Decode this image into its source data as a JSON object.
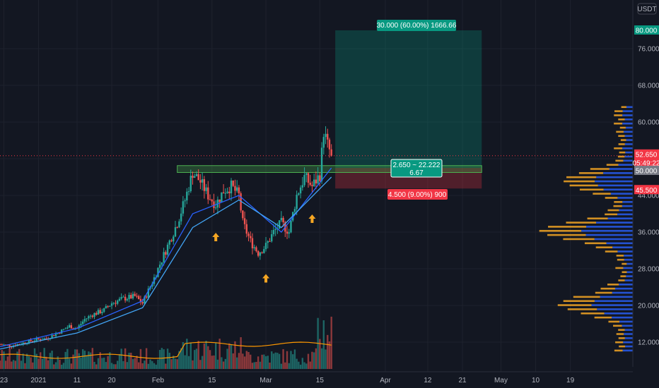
{
  "header": {
    "currency": "USDT"
  },
  "price_axis": {
    "ticks": [
      "12.000",
      "20.000",
      "28.000",
      "36.000",
      "44.000",
      "52.000",
      "60.000",
      "68.000",
      "76.000"
    ],
    "tags": [
      {
        "label": "80.000",
        "color": "#089981"
      },
      {
        "label": "52.650",
        "color": "#f23645"
      },
      {
        "label": "05:49:22",
        "color": "#f23645"
      },
      {
        "label": "50.000",
        "color": "#787b86"
      },
      {
        "label": "45.500",
        "color": "#f23645"
      }
    ]
  },
  "time_axis": {
    "ticks": [
      "23",
      "2021",
      "11",
      "20",
      "Feb",
      "15",
      "Mar",
      "15",
      "Apr",
      "12",
      "21",
      "May",
      "10",
      "19"
    ]
  },
  "position_tool": {
    "target_label": "30.000 (60.00%) 1666.66",
    "ratio_line1": "2.650 ~ 22.222",
    "ratio_line2": "6.67",
    "stop_label": "4.500 (9.00%) 900",
    "profit_color": "#089981",
    "loss_color": "#f23645"
  },
  "colors": {
    "up": "#26a69a",
    "down": "#ef5350",
    "ma_fast": "#2962ff",
    "ma_slow": "#42a5f5",
    "volume_ma": "#ff9800",
    "vp_up": "#f5a623",
    "vp_down": "#2962ff",
    "zone": "#4caf50",
    "arrow": "#f5a623"
  },
  "chart_data": {
    "type": "candlestick",
    "pair_quote": "USDT",
    "ylim": [
      6,
      86
    ],
    "x_range": [
      "Dec 22",
      "May 30"
    ],
    "price_series": [
      [
        "Dec 22",
        11.5
      ],
      [
        "Dec 25",
        11.2
      ],
      [
        "Dec 28",
        11.8
      ],
      [
        "Dec 31",
        12.5
      ],
      [
        "Jan 3",
        12.8
      ],
      [
        "Jan 6",
        14.0
      ],
      [
        "Jan 9",
        15.5
      ],
      [
        "Jan 11",
        15.0
      ],
      [
        "Jan 13",
        17.0
      ],
      [
        "Jan 15",
        18.0
      ],
      [
        "Jan 18",
        19.0
      ],
      [
        "Jan 20",
        20.5
      ],
      [
        "Jan 23",
        21.5
      ],
      [
        "Jan 26",
        22.0
      ],
      [
        "Jan 28",
        20.5
      ],
      [
        "Jan 31",
        26.0
      ],
      [
        "Feb 2",
        30.0
      ],
      [
        "Feb 4",
        34.0
      ],
      [
        "Feb 6",
        38.0
      ],
      [
        "Feb 8",
        43.0
      ],
      [
        "Feb 10",
        49.0
      ],
      [
        "Feb 12",
        47.0
      ],
      [
        "Feb 14",
        44.0
      ],
      [
        "Feb 16",
        42.0
      ],
      [
        "Feb 18",
        45.0
      ],
      [
        "Feb 20",
        46.0
      ],
      [
        "Feb 22",
        44.0
      ],
      [
        "Feb 23",
        38.0
      ],
      [
        "Feb 25",
        34.0
      ],
      [
        "Feb 27",
        31.5
      ],
      [
        "Mar 1",
        33.0
      ],
      [
        "Mar 3",
        36.0
      ],
      [
        "Mar 5",
        38.0
      ],
      [
        "Mar 7",
        36.0
      ],
      [
        "Mar 9",
        44.0
      ],
      [
        "Mar 11",
        48.0
      ],
      [
        "Mar 13",
        46.0
      ],
      [
        "Mar 15",
        48.5
      ],
      [
        "Mar 16",
        58.0
      ],
      [
        "Mar 17",
        55.0
      ],
      [
        "Mar 18",
        52.65
      ]
    ],
    "moving_averages": [
      {
        "type": "ma_fast",
        "values": [
          [
            "Dec 22",
            11.0
          ],
          [
            "Jan 11",
            15.0
          ],
          [
            "Jan 28",
            21.0
          ],
          [
            "Feb 10",
            40.0
          ],
          [
            "Feb 22",
            44.0
          ],
          [
            "Mar 5",
            36.0
          ],
          [
            "Mar 18",
            50.0
          ]
        ]
      },
      {
        "type": "ma_slow",
        "values": [
          [
            "Dec 22",
            10.5
          ],
          [
            "Jan 11",
            14.0
          ],
          [
            "Jan 28",
            19.5
          ],
          [
            "Feb 10",
            37.0
          ],
          [
            "Feb 22",
            43.0
          ],
          [
            "Mar 5",
            37.0
          ],
          [
            "Mar 18",
            48.0
          ]
        ]
      }
    ],
    "position": {
      "entry": 50.0,
      "target": 80.0,
      "stop": 45.5,
      "current": 52.65,
      "start": "Mar 19",
      "end": "Apr 26"
    },
    "support_zone": {
      "low": 49.0,
      "high": 50.5,
      "start": "Feb 6",
      "end": "Apr 26"
    },
    "arrows": [
      "Feb 16",
      "Mar 1",
      "Mar 13"
    ],
    "volume_profile_rows": 60
  }
}
